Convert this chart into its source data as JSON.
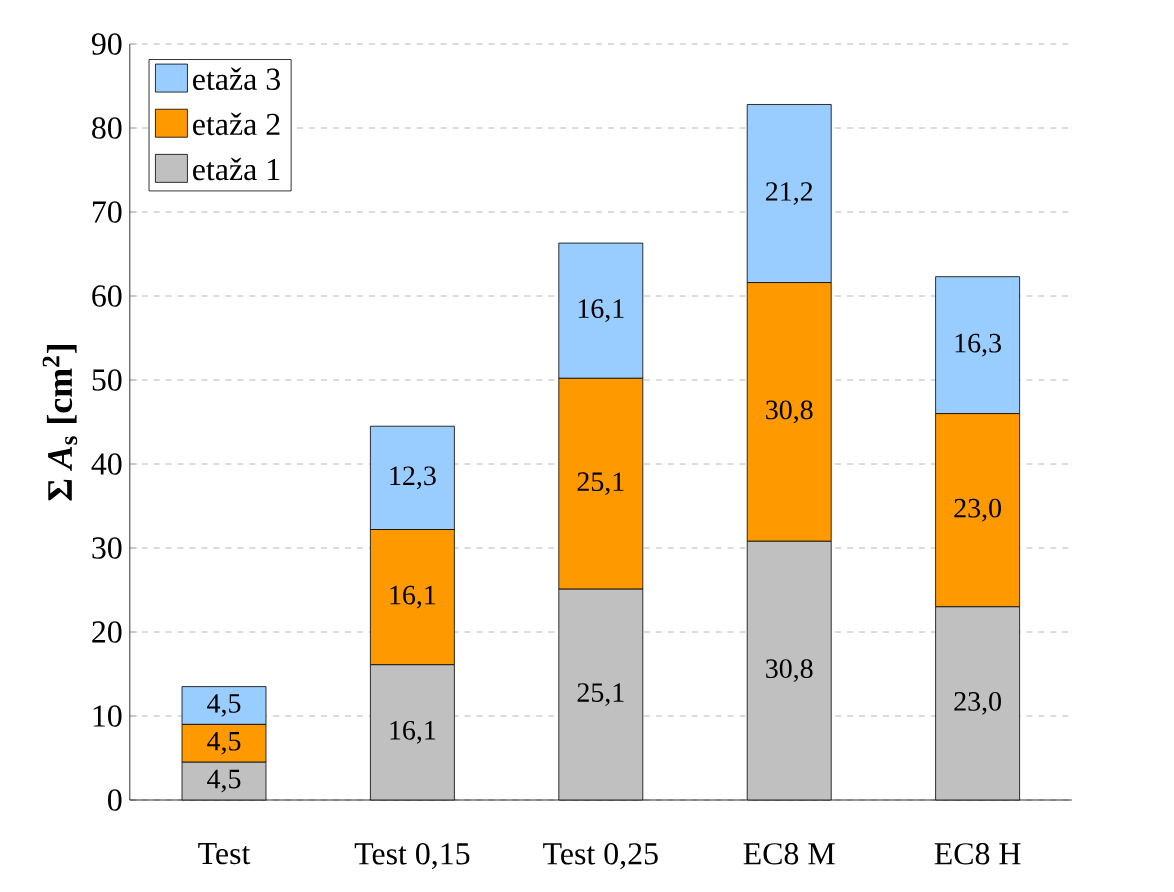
{
  "chart_data": {
    "type": "bar",
    "stacked": true,
    "ylabel": "Σ *A*$_{s}$ [cm$^{2}$]",
    "categories": [
      "Test",
      "Test 0,15",
      "Test 0,25",
      "EC8 M",
      "EC8 H"
    ],
    "series": [
      {
        "name": "etaža 1",
        "color": "#c0c0c0",
        "values": [
          4.5,
          16.1,
          25.1,
          30.8,
          23.0
        ],
        "value_labels": [
          "4,5",
          "16,1",
          "25,1",
          "30,8",
          "23,0"
        ]
      },
      {
        "name": "etaža 2",
        "color": "#ff9900",
        "values": [
          4.5,
          16.1,
          25.1,
          30.8,
          23.0
        ],
        "value_labels": [
          "4,5",
          "16,1",
          "25,1",
          "30,8",
          "23,0"
        ]
      },
      {
        "name": "etaža 3",
        "color": "#99ccff",
        "values": [
          4.5,
          12.3,
          16.1,
          21.2,
          16.3
        ],
        "value_labels": [
          "4,5",
          "12,3",
          "16,1",
          "21,2",
          "16,3"
        ]
      }
    ],
    "ylim": [
      0,
      90
    ],
    "yticks": [
      0,
      10,
      20,
      30,
      40,
      50,
      60,
      70,
      80,
      90
    ],
    "grid": "y",
    "legend": "top left"
  }
}
